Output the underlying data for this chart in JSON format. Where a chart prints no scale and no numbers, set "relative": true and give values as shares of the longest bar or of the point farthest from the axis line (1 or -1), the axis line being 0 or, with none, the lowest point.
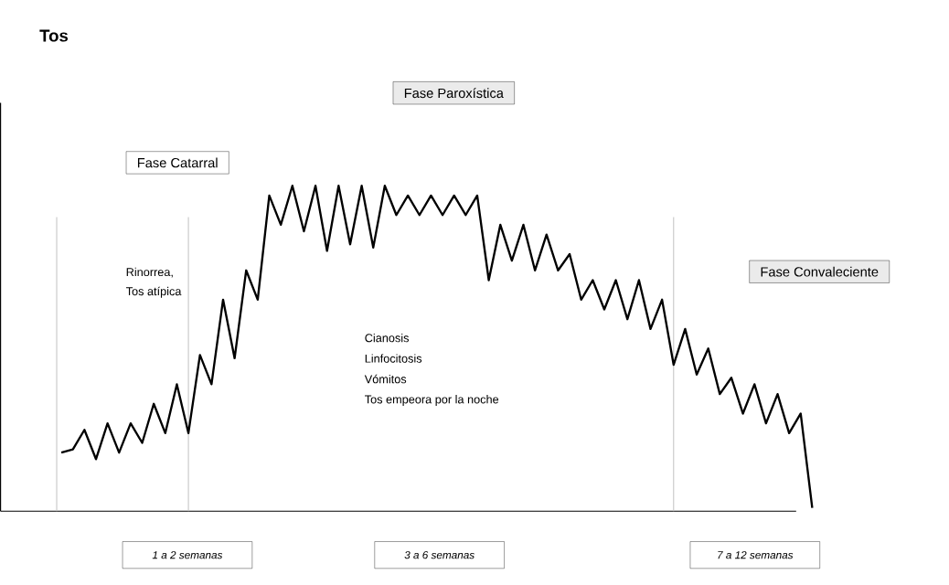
{
  "chart_data": {
    "type": "line",
    "title": "Tos",
    "relative": true,
    "color": "#000000",
    "categories": [
      null,
      null,
      null,
      null,
      null,
      null,
      null,
      null,
      null,
      null,
      null,
      null,
      null,
      null,
      null,
      null,
      null,
      null,
      null,
      null,
      null,
      null,
      null,
      null,
      null,
      null,
      null,
      null,
      null,
      null,
      null,
      null,
      null,
      null,
      null,
      null,
      null,
      null,
      null,
      null,
      null,
      null,
      null,
      null,
      null,
      null,
      null,
      null,
      null,
      null,
      null,
      null,
      null,
      null,
      null,
      null,
      null,
      null,
      null,
      null,
      null,
      null,
      null,
      null,
      null,
      null
    ],
    "values": [
      0.18,
      0.19,
      0.25,
      0.16,
      0.27,
      0.18,
      0.27,
      0.21,
      0.33,
      0.24,
      0.39,
      0.24,
      0.48,
      0.39,
      0.65,
      0.47,
      0.74,
      0.65,
      0.97,
      0.88,
      1,
      0.86,
      1,
      0.8,
      1,
      0.82,
      1,
      0.81,
      1,
      0.91,
      0.97,
      0.91,
      0.97,
      0.91,
      0.97,
      0.91,
      0.97,
      0.71,
      0.88,
      0.77,
      0.88,
      0.74,
      0.85,
      0.74,
      0.79,
      0.65,
      0.71,
      0.62,
      0.71,
      0.59,
      0.71,
      0.56,
      0.65,
      0.45,
      0.56,
      0.42,
      0.5,
      0.36,
      0.41,
      0.3,
      0.39,
      0.27,
      0.36,
      0.24,
      0.3,
      0.01
    ],
    "annotations": [
      "Fase Catarral",
      "Fase Paroxística",
      "Fase Convaleciente",
      "Rinorrea,",
      "Tos atípica",
      "Cianosis",
      "Linfocitosis",
      "Vómitos",
      "Tos empeora por la noche",
      "1 a  2 semanas",
      "3 a 6 semanas",
      "7 a 12 semanas"
    ]
  }
}
